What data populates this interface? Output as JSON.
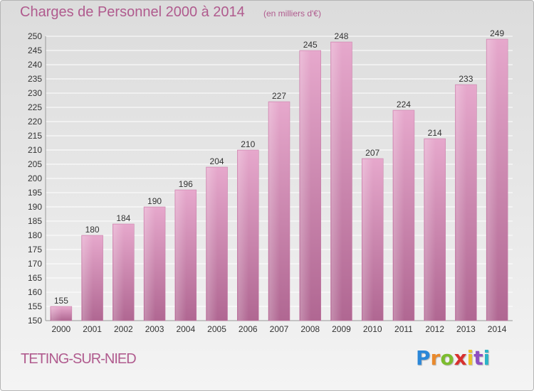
{
  "chart_data": {
    "type": "bar",
    "title": "Charges de Personnel 2000 à 2014",
    "subtitle": "(en milliers d'€)",
    "categories": [
      "2000",
      "2001",
      "2002",
      "2003",
      "2004",
      "2005",
      "2006",
      "2007",
      "2008",
      "2009",
      "2010",
      "2011",
      "2012",
      "2013",
      "2014"
    ],
    "values": [
      155,
      180,
      184,
      190,
      196,
      204,
      210,
      227,
      245,
      248,
      207,
      224,
      214,
      233,
      249
    ],
    "ylim": [
      150,
      250
    ],
    "ytick_step": 5,
    "grid": true,
    "bar_color": "#d58fb8"
  },
  "footer": {
    "commune": "TETING-SUR-NIED",
    "logo_letters": [
      "P",
      "r",
      "o",
      "x",
      "i",
      "t",
      "i"
    ],
    "logo_colors": [
      "#2b87d8",
      "#e9892c",
      "#7cbc2e",
      "#d8302e",
      "#e9c22a",
      "#8e4fc0",
      "#2bb3c7"
    ]
  },
  "colors": {
    "text_accent": "#b05b8e",
    "grid": "#ffffff",
    "axis_text": "#333333"
  }
}
